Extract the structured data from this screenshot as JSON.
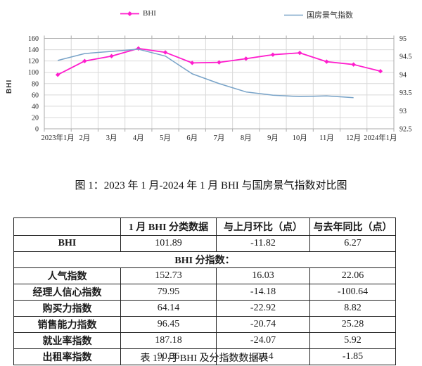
{
  "figure_caption": "图 1：2023 年 1 月-2024 年 1 月 BHI 与国房景气指数对比图",
  "chart_data": {
    "type": "line",
    "categories": [
      "2023年1月",
      "2月",
      "3月",
      "4月",
      "5月",
      "6月",
      "7月",
      "8月",
      "9月",
      "10月",
      "11月",
      "12月",
      "2024年1月"
    ],
    "series": [
      {
        "name": "BHI",
        "axis": "left",
        "color": "#ff1dcd",
        "marker": "diamond",
        "values": [
          95.62,
          119.9,
          128.6,
          142.1,
          135.2,
          116.6,
          117.5,
          124.1,
          131.1,
          134.3,
          118.8,
          113.71,
          101.89
        ]
      },
      {
        "name": "国房景气指数",
        "axis": "right",
        "color": "#78a3c8",
        "marker": "none",
        "values": [
          94.39,
          94.58,
          94.64,
          94.7,
          94.51,
          94.02,
          93.75,
          93.52,
          93.43,
          93.39,
          93.41,
          93.36,
          null
        ]
      }
    ],
    "left_axis": {
      "label": "BHI",
      "min": 0,
      "max": 160,
      "step": 20
    },
    "right_axis": {
      "min": 92.5,
      "max": 95,
      "step": 0.5
    },
    "grid": true,
    "legend_position": "top"
  },
  "table": {
    "headers": [
      "",
      "1 月 BHI 分类数据",
      "与上月环比（点）",
      "与去年同比（点）"
    ],
    "rows": [
      [
        "BHI",
        "101.89",
        "-11.82",
        "6.27"
      ],
      [
        "BHI 分指数："
      ],
      [
        "人气指数",
        "152.73",
        "16.03",
        "22.06"
      ],
      [
        "经理人信心指数",
        "79.95",
        "-14.18",
        "-100.64"
      ],
      [
        "购买力指数",
        "64.14",
        "-22.92",
        "8.82"
      ],
      [
        "销售能力指数",
        "96.45",
        "-20.74",
        "25.28"
      ],
      [
        "就业率指数",
        "187.18",
        "-24.07",
        "5.92"
      ],
      [
        "出租率指数",
        "90.36",
        "-0.14",
        "-1.85"
      ]
    ],
    "caption": "表 1:1 月 BHI 及分指数数据表"
  },
  "colors": {
    "bhi_line": "#ff1dcd",
    "boom_index_line": "#78a3c8",
    "gridline": "#d9d9d9",
    "plot_border": "#ababab",
    "axis_text": "#262626"
  }
}
